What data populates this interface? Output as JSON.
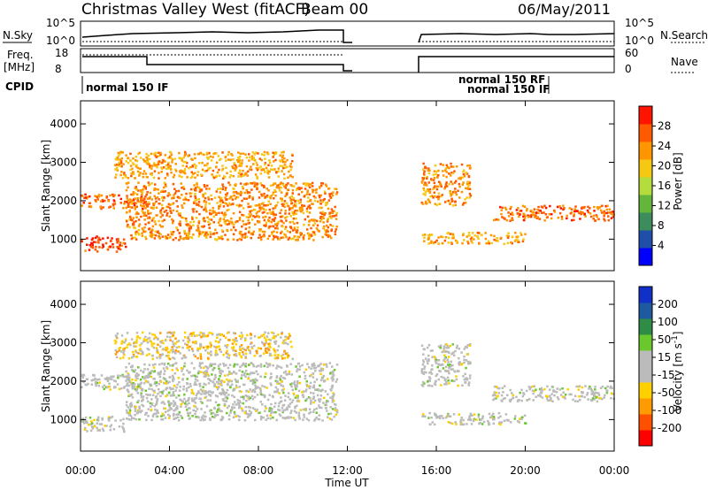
{
  "header": {
    "title": "Christmas Valley West (fitACF)",
    "beam": "Beam 00",
    "date": "06/May/2011"
  },
  "meta_panels": {
    "nsky_label": "N.Sky",
    "nsky_ticks": [
      "10^5",
      "10^0"
    ],
    "nsearch_label": "N.Search",
    "freq_label": [
      "Freq.",
      "[MHz]"
    ],
    "freq_ticks": [
      "18",
      "8"
    ],
    "nave_label": "Nave",
    "nave_ticks": [
      "60",
      "0"
    ],
    "cpid_label": "CPID",
    "cpid_texts": [
      "normal 150 IF",
      "normal 150 RF",
      "normal 150 IF"
    ]
  },
  "colors": {
    "power_scale": [
      "#0000ff",
      "#1f4fa8",
      "#3c8c5c",
      "#63b53c",
      "#b4dc3c",
      "#f5c814",
      "#ff9600",
      "#ff5a00",
      "#ff1400"
    ],
    "velocity_scale": [
      "#ff0000",
      "#ff5000",
      "#ff9a00",
      "#ffd000",
      "#bbbbbb",
      "#bbbbbb",
      "#6ac82c",
      "#2e8c46",
      "#1f5aa0",
      "#1030c8"
    ]
  },
  "chart_data": [
    {
      "type": "heatmap",
      "panel": "power",
      "ylabel": "Slant Range [km]",
      "xlabel": "Time UT",
      "x_ticks": [
        "00:00",
        "04:00",
        "08:00",
        "12:00",
        "16:00",
        "20:00",
        "00:00"
      ],
      "x_range": [
        0,
        24
      ],
      "y_ticks": [
        "1000",
        "2000",
        "3000",
        "4000"
      ],
      "y_range": [
        180,
        4600
      ],
      "colorbar": {
        "label": "Power [dB]",
        "ticks": [
          "28",
          "24",
          "20",
          "16",
          "12",
          "8",
          "4"
        ],
        "range": [
          0,
          32
        ]
      },
      "data_gap": [
        12.1,
        15.2
      ],
      "bands": [
        {
          "t": [
            0.0,
            2.0
          ],
          "r": [
            700,
            1100
          ],
          "value": 28
        },
        {
          "t": [
            0.0,
            3.0
          ],
          "r": [
            1800,
            2200
          ],
          "value": 26
        },
        {
          "t": [
            2.0,
            11.5
          ],
          "r": [
            1000,
            2500
          ],
          "value": 24
        },
        {
          "t": [
            1.5,
            9.5
          ],
          "r": [
            2600,
            3300
          ],
          "value": 22
        },
        {
          "t": [
            15.3,
            17.5
          ],
          "r": [
            1900,
            3000
          ],
          "value": 24
        },
        {
          "t": [
            15.3,
            20.0
          ],
          "r": [
            900,
            1200
          ],
          "value": 22
        },
        {
          "t": [
            18.5,
            24.0
          ],
          "r": [
            1500,
            1900
          ],
          "value": 26
        }
      ]
    },
    {
      "type": "heatmap",
      "panel": "velocity",
      "ylabel": "Slant Range [km]",
      "xlabel": "Time UT",
      "x_ticks": [
        "00:00",
        "04:00",
        "08:00",
        "12:00",
        "16:00",
        "20:00",
        "00:00"
      ],
      "x_range": [
        0,
        24
      ],
      "y_ticks": [
        "1000",
        "2000",
        "3000",
        "4000"
      ],
      "y_range": [
        180,
        4600
      ],
      "colorbar": {
        "label": "Velocity [m s-1]",
        "ticks": [
          "200",
          "100",
          "50",
          "15",
          "-15",
          "-50",
          "-100",
          "-200"
        ],
        "range": [
          -250,
          250
        ]
      },
      "data_gap": [
        12.1,
        15.2
      ],
      "bands": [
        {
          "t": [
            0.0,
            2.0
          ],
          "r": [
            700,
            1100
          ],
          "value": 0
        },
        {
          "t": [
            0.0,
            3.0
          ],
          "r": [
            1800,
            2200
          ],
          "value": 0
        },
        {
          "t": [
            2.0,
            11.5
          ],
          "r": [
            1000,
            2500
          ],
          "value": 0
        },
        {
          "t": [
            1.5,
            9.5
          ],
          "r": [
            2600,
            3300
          ],
          "value": -60
        },
        {
          "t": [
            15.3,
            17.5
          ],
          "r": [
            1900,
            3000
          ],
          "value": 0
        },
        {
          "t": [
            15.3,
            20.0
          ],
          "r": [
            900,
            1200
          ],
          "value": 0
        },
        {
          "t": [
            18.5,
            24.0
          ],
          "r": [
            1500,
            1900
          ],
          "value": 0
        }
      ]
    }
  ]
}
